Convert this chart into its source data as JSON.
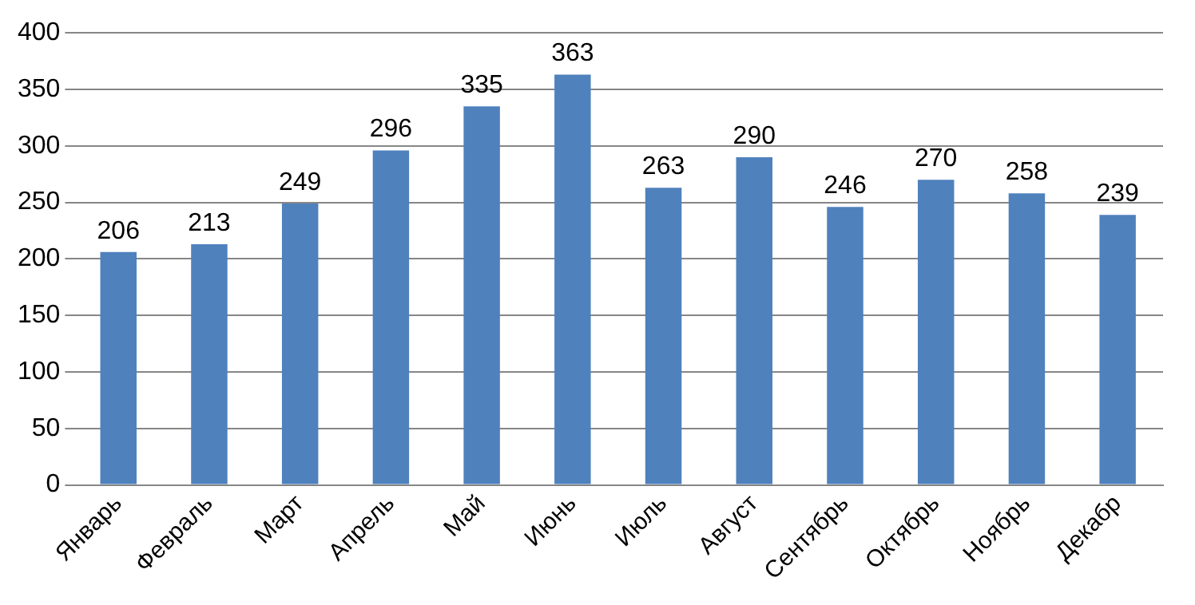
{
  "chart_data": {
    "type": "bar",
    "categories": [
      "Январь",
      "Февраль",
      "Март",
      "Апрель",
      "Май",
      "Июнь",
      "Июль",
      "Август",
      "Сентябрь",
      "Октябрь",
      "Ноябрь",
      "Декабр"
    ],
    "values": [
      206,
      213,
      249,
      296,
      335,
      363,
      263,
      290,
      246,
      270,
      258,
      239
    ],
    "color": "#4f81bd",
    "ylim": [
      0,
      400
    ],
    "yticks": [
      0,
      50,
      100,
      150,
      200,
      250,
      300,
      350,
      400
    ],
    "grid": "y",
    "data_labels": true,
    "legend": false
  }
}
